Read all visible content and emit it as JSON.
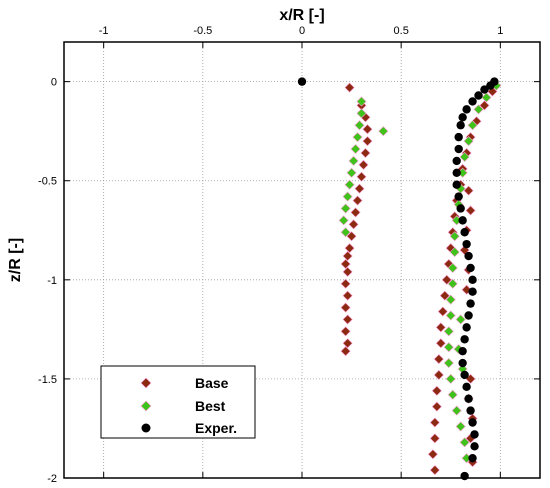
{
  "chart_data": {
    "type": "scatter",
    "title": "",
    "xlabel": "x/R [-]",
    "ylabel": "z/R [-]",
    "xlim": [
      -1.2,
      1.2
    ],
    "ylim": [
      -2,
      0.2
    ],
    "xticks": [
      -1,
      -0.5,
      0,
      0.5,
      1
    ],
    "xtick_labels": [
      "-1",
      "-0.5",
      "0",
      "0.5",
      "1"
    ],
    "yticks": [
      0,
      -0.5,
      -1,
      -1.5,
      -2
    ],
    "ytick_labels": [
      "0",
      "-0.5",
      "-1",
      "-1.5",
      "-2"
    ],
    "grid": true,
    "x_axis_position": "top",
    "legend": {
      "position": "bottom-left",
      "entries": [
        "Base",
        "Best",
        "Exper."
      ]
    },
    "series": [
      {
        "name": "Base",
        "marker": "diamond",
        "color": "#8b2a10",
        "points": [
          [
            0.24,
            -0.03
          ],
          [
            0.3,
            -0.12
          ],
          [
            0.32,
            -0.18
          ],
          [
            0.33,
            -0.24
          ],
          [
            0.33,
            -0.3
          ],
          [
            0.32,
            -0.36
          ],
          [
            0.31,
            -0.42
          ],
          [
            0.3,
            -0.48
          ],
          [
            0.29,
            -0.54
          ],
          [
            0.28,
            -0.6
          ],
          [
            0.27,
            -0.66
          ],
          [
            0.26,
            -0.72
          ],
          [
            0.25,
            -0.78
          ],
          [
            0.24,
            -0.84
          ],
          [
            0.23,
            -0.88
          ],
          [
            0.22,
            -0.92
          ],
          [
            0.23,
            -0.96
          ],
          [
            0.22,
            -1.02
          ],
          [
            0.23,
            -1.08
          ],
          [
            0.22,
            -1.14
          ],
          [
            0.23,
            -1.2
          ],
          [
            0.22,
            -1.26
          ],
          [
            0.23,
            -1.32
          ],
          [
            0.22,
            -1.36
          ],
          [
            0.96,
            -0.05
          ],
          [
            0.92,
            -0.12
          ],
          [
            0.88,
            -0.2
          ],
          [
            0.85,
            -0.28
          ],
          [
            0.83,
            -0.36
          ],
          [
            0.81,
            -0.44
          ],
          [
            0.8,
            -0.52
          ],
          [
            0.78,
            -0.6
          ],
          [
            0.77,
            -0.68
          ],
          [
            0.76,
            -0.76
          ],
          [
            0.75,
            -0.84
          ],
          [
            0.74,
            -0.92
          ],
          [
            0.73,
            -1.0
          ],
          [
            0.72,
            -1.08
          ],
          [
            0.71,
            -1.16
          ],
          [
            0.7,
            -1.24
          ],
          [
            0.7,
            -1.32
          ],
          [
            0.69,
            -1.4
          ],
          [
            0.69,
            -1.48
          ],
          [
            0.68,
            -1.56
          ],
          [
            0.68,
            -1.64
          ],
          [
            0.67,
            -1.72
          ],
          [
            0.67,
            -1.8
          ],
          [
            0.66,
            -1.88
          ],
          [
            0.67,
            -1.96
          ],
          [
            0.84,
            -0.55
          ],
          [
            0.85,
            -0.65
          ],
          [
            0.83,
            -0.75
          ],
          [
            0.82,
            -0.85
          ],
          [
            0.84,
            -0.95
          ],
          [
            0.83,
            -1.05
          ],
          [
            0.85,
            -1.5
          ],
          [
            0.84,
            -1.6
          ],
          [
            0.86,
            -1.7
          ],
          [
            0.85,
            -1.8
          ],
          [
            0.86,
            -1.92
          ]
        ]
      },
      {
        "name": "Best",
        "marker": "diamond",
        "color": "#3fc21a",
        "points": [
          [
            0.3,
            -0.1
          ],
          [
            0.3,
            -0.16
          ],
          [
            0.29,
            -0.22
          ],
          [
            0.28,
            -0.28
          ],
          [
            0.27,
            -0.34
          ],
          [
            0.26,
            -0.4
          ],
          [
            0.25,
            -0.46
          ],
          [
            0.24,
            -0.52
          ],
          [
            0.23,
            -0.58
          ],
          [
            0.22,
            -0.64
          ],
          [
            0.21,
            -0.7
          ],
          [
            0.22,
            -0.76
          ],
          [
            0.41,
            -0.25
          ],
          [
            0.98,
            -0.02
          ],
          [
            0.93,
            -0.08
          ],
          [
            0.89,
            -0.14
          ],
          [
            0.86,
            -0.22
          ],
          [
            0.84,
            -0.3
          ],
          [
            0.82,
            -0.38
          ],
          [
            0.81,
            -0.46
          ],
          [
            0.8,
            -0.54
          ],
          [
            0.79,
            -0.62
          ],
          [
            0.78,
            -0.7
          ],
          [
            0.77,
            -0.78
          ],
          [
            0.77,
            -0.86
          ],
          [
            0.76,
            -0.94
          ],
          [
            0.76,
            -1.02
          ],
          [
            0.75,
            -1.1
          ],
          [
            0.75,
            -1.18
          ],
          [
            0.74,
            -1.26
          ],
          [
            0.74,
            -1.34
          ],
          [
            0.74,
            -1.42
          ],
          [
            0.75,
            -1.5
          ],
          [
            0.76,
            -1.58
          ],
          [
            0.78,
            -1.66
          ],
          [
            0.8,
            -1.74
          ],
          [
            0.82,
            -1.82
          ],
          [
            0.83,
            -1.9
          ],
          [
            0.8,
            -1.2
          ],
          [
            0.79,
            -1.35
          ],
          [
            0.81,
            -1.45
          ]
        ]
      },
      {
        "name": "Exper.",
        "marker": "circle",
        "color": "#000000",
        "points": [
          [
            0.0,
            0.0
          ],
          [
            0.97,
            0.0
          ],
          [
            0.95,
            -0.02
          ],
          [
            0.92,
            -0.04
          ],
          [
            0.89,
            -0.07
          ],
          [
            0.86,
            -0.1
          ],
          [
            0.83,
            -0.14
          ],
          [
            0.81,
            -0.18
          ],
          [
            0.8,
            -0.22
          ],
          [
            0.79,
            -0.28
          ],
          [
            0.79,
            -0.34
          ],
          [
            0.78,
            -0.4
          ],
          [
            0.78,
            -0.46
          ],
          [
            0.78,
            -0.52
          ],
          [
            0.79,
            -0.58
          ],
          [
            0.8,
            -0.64
          ],
          [
            0.81,
            -0.7
          ],
          [
            0.82,
            -0.76
          ],
          [
            0.83,
            -0.82
          ],
          [
            0.84,
            -0.88
          ],
          [
            0.85,
            -0.94
          ],
          [
            0.86,
            -1.0
          ],
          [
            0.86,
            -1.06
          ],
          [
            0.85,
            -1.12
          ],
          [
            0.84,
            -1.18
          ],
          [
            0.83,
            -1.24
          ],
          [
            0.82,
            -1.3
          ],
          [
            0.81,
            -1.36
          ],
          [
            0.81,
            -1.42
          ],
          [
            0.82,
            -1.48
          ],
          [
            0.83,
            -1.54
          ],
          [
            0.84,
            -1.6
          ],
          [
            0.85,
            -1.66
          ],
          [
            0.86,
            -1.72
          ],
          [
            0.87,
            -1.78
          ],
          [
            0.87,
            -1.84
          ],
          [
            0.86,
            -1.9
          ],
          [
            0.82,
            -1.99
          ]
        ]
      }
    ]
  }
}
